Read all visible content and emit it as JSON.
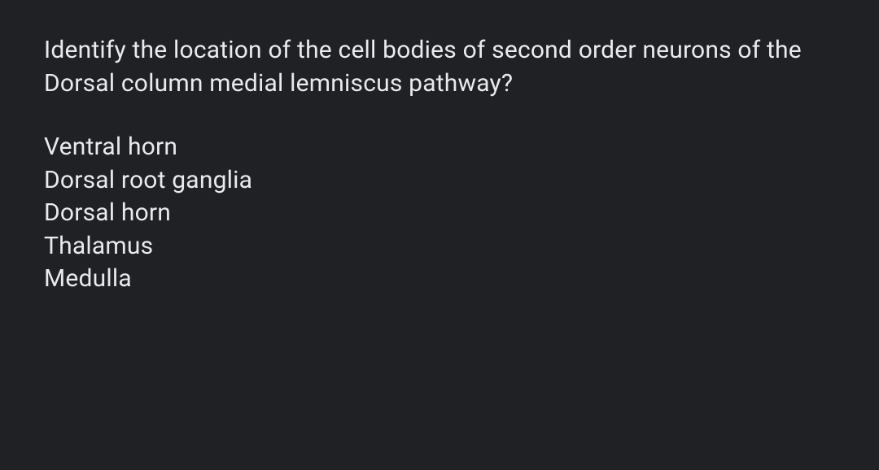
{
  "background_color": "#202124",
  "text_color": "#e8eaed",
  "question": {
    "text": "Identify the location of the cell bodies of second order neurons of the Dorsal column medial lemniscus pathway?",
    "fontsize": 30,
    "fontweight": 400
  },
  "options": [
    {
      "label": "Ventral horn"
    },
    {
      "label": "Dorsal root ganglia"
    },
    {
      "label": "Dorsal horn"
    },
    {
      "label": "Thalamus"
    },
    {
      "label": "Medulla"
    }
  ],
  "option_style": {
    "fontsize": 30,
    "fontweight": 400,
    "line_height": 1.35
  }
}
